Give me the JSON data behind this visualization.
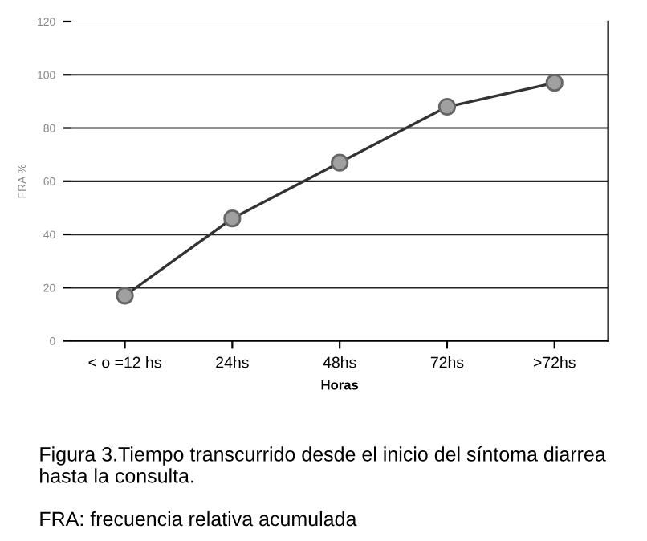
{
  "chart_data": {
    "type": "line",
    "xlabel": "Horas",
    "ylabel": "FRA %",
    "categories": [
      "< o =12 hs",
      "24hs",
      "48hs",
      "72hs",
      ">72hs"
    ],
    "series": [
      {
        "color": "#333333",
        "values": [
          17,
          46,
          67,
          88,
          97
        ]
      }
    ],
    "ylim": [
      0,
      120
    ],
    "yticks": [
      0,
      20,
      40,
      60,
      80,
      100,
      120
    ],
    "grid": "y",
    "marker": "circle",
    "line_style": "solid",
    "legend": false,
    "annotations": [
      "Figura 3.Tiempo transcurrido desde el inicio del síntoma diarrea hasta la consulta.",
      "FRA: frecuencia relativa acumulada"
    ]
  }
}
